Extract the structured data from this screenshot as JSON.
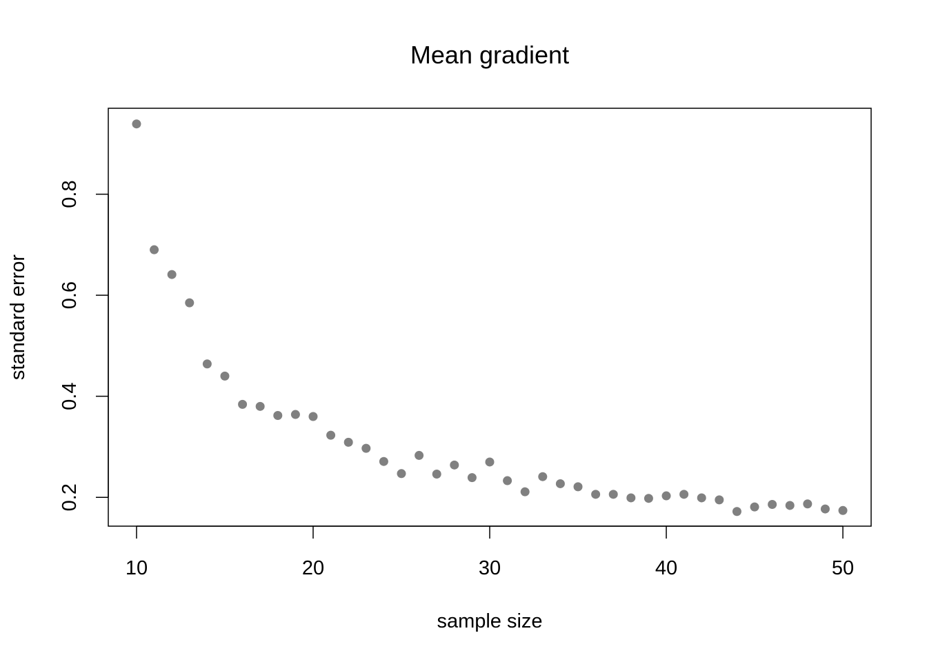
{
  "chart_data": {
    "type": "scatter",
    "title": "Mean gradient",
    "xlabel": "sample size",
    "ylabel": "standard error",
    "xlim": [
      8.4,
      51.6
    ],
    "ylim": [
      0.143,
      0.97
    ],
    "x_ticks": [
      10,
      20,
      30,
      40,
      50
    ],
    "y_ticks": [
      0.2,
      0.4,
      0.6,
      0.8
    ],
    "x_tick_labels": [
      "10",
      "20",
      "30",
      "40",
      "50"
    ],
    "y_tick_labels": [
      "0.2",
      "0.4",
      "0.6",
      "0.8"
    ],
    "grid": false,
    "legend": "none",
    "marker_color": "#808080",
    "series": [
      {
        "x": [
          10,
          11,
          12,
          13,
          14,
          15,
          16,
          17,
          18,
          19,
          20,
          21,
          22,
          23,
          24,
          25,
          26,
          27,
          28,
          29,
          30,
          31,
          32,
          33,
          34,
          35,
          36,
          37,
          38,
          39,
          40,
          41,
          42,
          43,
          44,
          45,
          46,
          47,
          48,
          49,
          50
        ],
        "y": [
          0.939,
          0.69,
          0.641,
          0.585,
          0.464,
          0.44,
          0.384,
          0.38,
          0.362,
          0.364,
          0.36,
          0.323,
          0.309,
          0.297,
          0.271,
          0.247,
          0.283,
          0.246,
          0.264,
          0.239,
          0.27,
          0.233,
          0.211,
          0.241,
          0.227,
          0.221,
          0.206,
          0.206,
          0.199,
          0.198,
          0.203,
          0.206,
          0.199,
          0.195,
          0.172,
          0.181,
          0.186,
          0.184,
          0.187,
          0.177,
          0.174
        ]
      }
    ]
  }
}
